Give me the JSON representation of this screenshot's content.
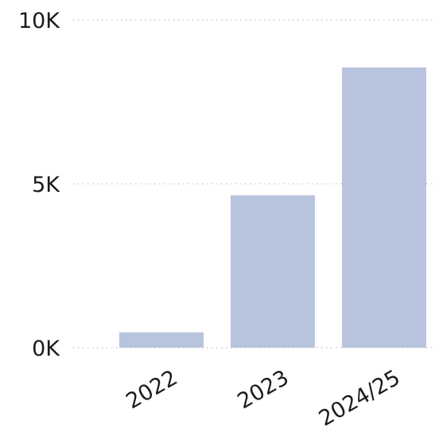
{
  "chart_data": {
    "type": "bar",
    "categories": [
      "2022",
      "2023",
      "2024/25"
    ],
    "values": [
      470,
      4650,
      8550
    ],
    "ylim": [
      0,
      10000
    ],
    "yticks": [
      {
        "value": 0,
        "label": "0K"
      },
      {
        "value": 5000,
        "label": "5K"
      },
      {
        "value": 10000,
        "label": "10K"
      }
    ],
    "grid": true,
    "legend": "none",
    "bar_color": "#b8c4de",
    "text_color": "#1b1b1b",
    "grid_color": "#c4c4c4"
  }
}
